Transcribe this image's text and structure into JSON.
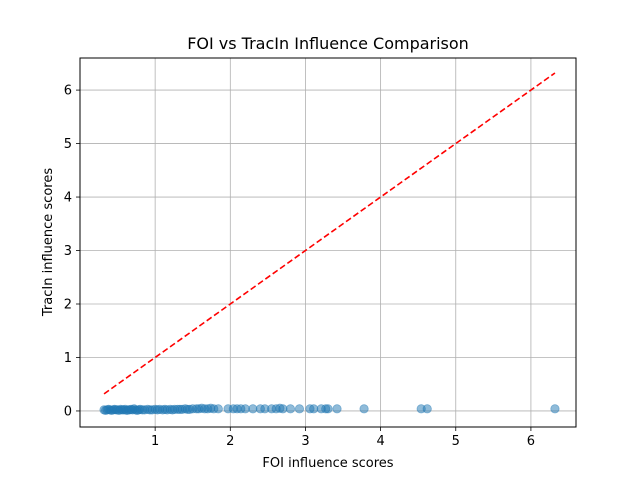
{
  "chart_data": {
    "type": "scatter",
    "title": "FOI vs TracIn Influence Comparison",
    "xlabel": "FOI influence scores",
    "ylabel": "TracIn influence scores",
    "xlim": [
      -0.0,
      6.6
    ],
    "ylim": [
      -0.3,
      6.6
    ],
    "xticks": [
      1,
      2,
      3,
      4,
      5,
      6
    ],
    "yticks": [
      0,
      1,
      2,
      3,
      4,
      5,
      6
    ],
    "grid": true,
    "point_color": "#1f77b4",
    "reference_line": {
      "style": "dashed",
      "color": "#ff0000",
      "x": [
        0.32,
        6.32
      ],
      "y": [
        0.32,
        6.32
      ]
    },
    "series": [
      {
        "x": [
          0.32,
          0.34,
          0.36,
          0.38,
          0.4,
          0.42,
          0.44,
          0.46,
          0.48,
          0.5,
          0.52,
          0.54,
          0.56,
          0.58,
          0.6,
          0.62,
          0.64,
          0.66,
          0.68,
          0.7,
          0.72,
          0.74,
          0.76,
          0.78,
          0.8,
          0.83,
          0.86,
          0.9,
          0.93,
          0.96,
          1.0,
          1.03,
          1.06,
          1.1,
          1.13,
          1.16,
          1.2,
          1.23,
          1.26,
          1.3,
          1.33,
          1.36,
          1.4,
          1.43,
          1.46,
          1.5,
          1.55,
          1.58,
          1.62,
          1.66,
          1.7,
          1.74,
          1.78,
          1.84,
          1.97,
          2.04,
          2.09,
          2.14,
          2.2,
          2.3,
          2.4,
          2.46,
          2.55,
          2.61,
          2.66,
          2.7,
          2.8,
          2.92,
          3.06,
          3.11,
          3.21,
          3.27,
          3.3,
          3.42,
          3.78,
          4.54,
          4.62,
          6.32
        ],
        "y": [
          0.02,
          0.01,
          0.02,
          0.03,
          0.02,
          0.01,
          0.02,
          0.03,
          0.02,
          0.02,
          0.01,
          0.03,
          0.02,
          0.02,
          0.03,
          0.01,
          0.02,
          0.02,
          0.03,
          0.02,
          0.04,
          0.02,
          0.01,
          0.02,
          0.03,
          0.02,
          0.02,
          0.03,
          0.02,
          0.02,
          0.03,
          0.02,
          0.03,
          0.02,
          0.03,
          0.02,
          0.03,
          0.02,
          0.03,
          0.03,
          0.03,
          0.03,
          0.04,
          0.03,
          0.03,
          0.04,
          0.04,
          0.04,
          0.05,
          0.04,
          0.04,
          0.05,
          0.04,
          0.04,
          0.04,
          0.04,
          0.04,
          0.04,
          0.04,
          0.04,
          0.04,
          0.04,
          0.04,
          0.04,
          0.05,
          0.04,
          0.04,
          0.04,
          0.04,
          0.04,
          0.04,
          0.04,
          0.04,
          0.04,
          0.04,
          0.04,
          0.04,
          0.04
        ]
      }
    ]
  }
}
